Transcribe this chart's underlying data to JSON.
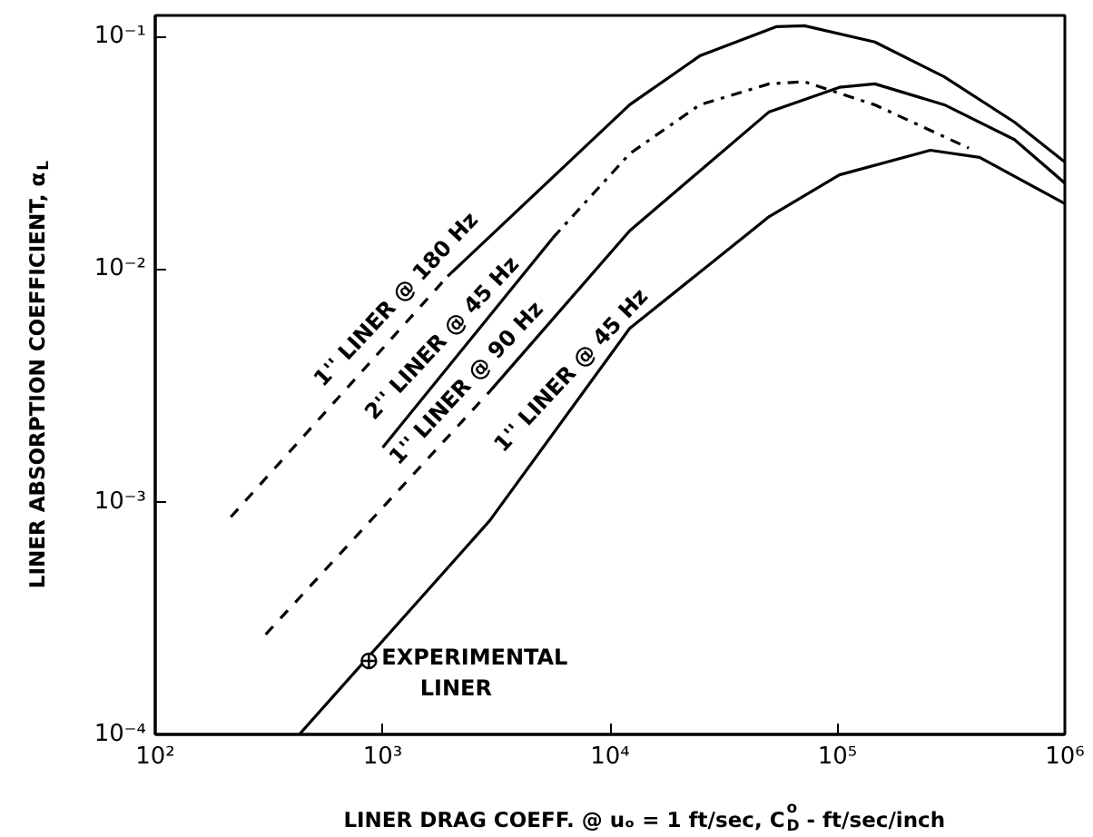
{
  "chart_data": {
    "type": "line",
    "xlabel": "LINER DRAG COEFF. @ uₒ = 1 ft/sec, C$^{o}$$_{D}$ - ft/sec/inch",
    "ylabel": "LINER ABSORPTION COEFFICIENT, α$_{L}$",
    "log": "xy",
    "grid": false,
    "xlim": [
      100,
      1000000
    ],
    "ylim": [
      0.0001,
      0.123
    ],
    "xticks": [
      {
        "value": 100,
        "label": "10²"
      },
      {
        "value": 1000,
        "label": "10³"
      },
      {
        "value": 10000,
        "label": "10⁴"
      },
      {
        "value": 100000,
        "label": "10⁵"
      },
      {
        "value": 1000000,
        "label": "10⁶"
      }
    ],
    "yticks": [
      {
        "value": 0.0001,
        "label": "10⁻⁴"
      },
      {
        "value": 0.001,
        "label": "10⁻³"
      },
      {
        "value": 0.01,
        "label": "10⁻²"
      },
      {
        "value": 0.1,
        "label": "10⁻¹"
      }
    ],
    "series": [
      {
        "color": "#000000",
        "line_style": "dashed",
        "x": [
          215,
          1930
        ],
        "values": [
          0.00086,
          0.0093
        ]
      },
      {
        "color": "#000000",
        "line_style": "solid",
        "x": [
          1930,
          12200,
          24800,
          53700,
          71600,
          146000,
          295000,
          600000,
          1000000
        ],
        "values": [
          0.0093,
          0.0508,
          0.0824,
          0.11,
          0.111,
          0.0946,
          0.067,
          0.0428,
          0.0288
        ]
      },
      {
        "color": "#000000",
        "line_style": "solid",
        "x": [
          1000,
          5600
        ],
        "values": [
          0.00171,
          0.0136
        ]
      },
      {
        "color": "#000000",
        "line_style": "dashdot",
        "x": [
          5600,
          12200,
          24800,
          50100,
          71600,
          146000,
          378000
        ],
        "values": [
          0.0136,
          0.0313,
          0.0508,
          0.0625,
          0.0638,
          0.0508,
          0.0331
        ]
      },
      {
        "color": "#000000",
        "line_style": "dashed",
        "x": [
          306,
          2960
        ],
        "values": [
          0.000269,
          0.00298
        ]
      },
      {
        "color": "#000000",
        "line_style": "solid",
        "x": [
          2960,
          12200,
          50100,
          102000,
          146000,
          295000,
          600000,
          1000000
        ],
        "values": [
          0.00298,
          0.0146,
          0.0474,
          0.0604,
          0.0625,
          0.0508,
          0.036,
          0.0234
        ]
      },
      {
        "color": "#000000",
        "line_style": "solid",
        "x": [
          430,
          2960,
          12200,
          50100,
          102000,
          256000,
          422000,
          1000000
        ],
        "values": [
          0.0001,
          0.00083,
          0.00556,
          0.0168,
          0.0254,
          0.0324,
          0.0302,
          0.0191
        ]
      },
      {
        "type": "scatter",
        "name": "EXPERIMENTAL\nLINER",
        "marker": "circle",
        "color": "#000000",
        "x": [
          870
        ],
        "values": [
          0.000207
        ]
      }
    ],
    "annotations": [
      {
        "text": "1'' LINER @ 180 Hz",
        "x": 1350,
        "y": 0.00632
      },
      {
        "text": "2'' LINER @ 45 Hz",
        "x": 2150,
        "y": 0.0043
      },
      {
        "text": "1'' LINER @ 90 Hz",
        "x": 2750,
        "y": 0.00276
      },
      {
        "text": "1'' LINER @ 45 Hz",
        "x": 7940,
        "y": 0.00313
      }
    ]
  }
}
